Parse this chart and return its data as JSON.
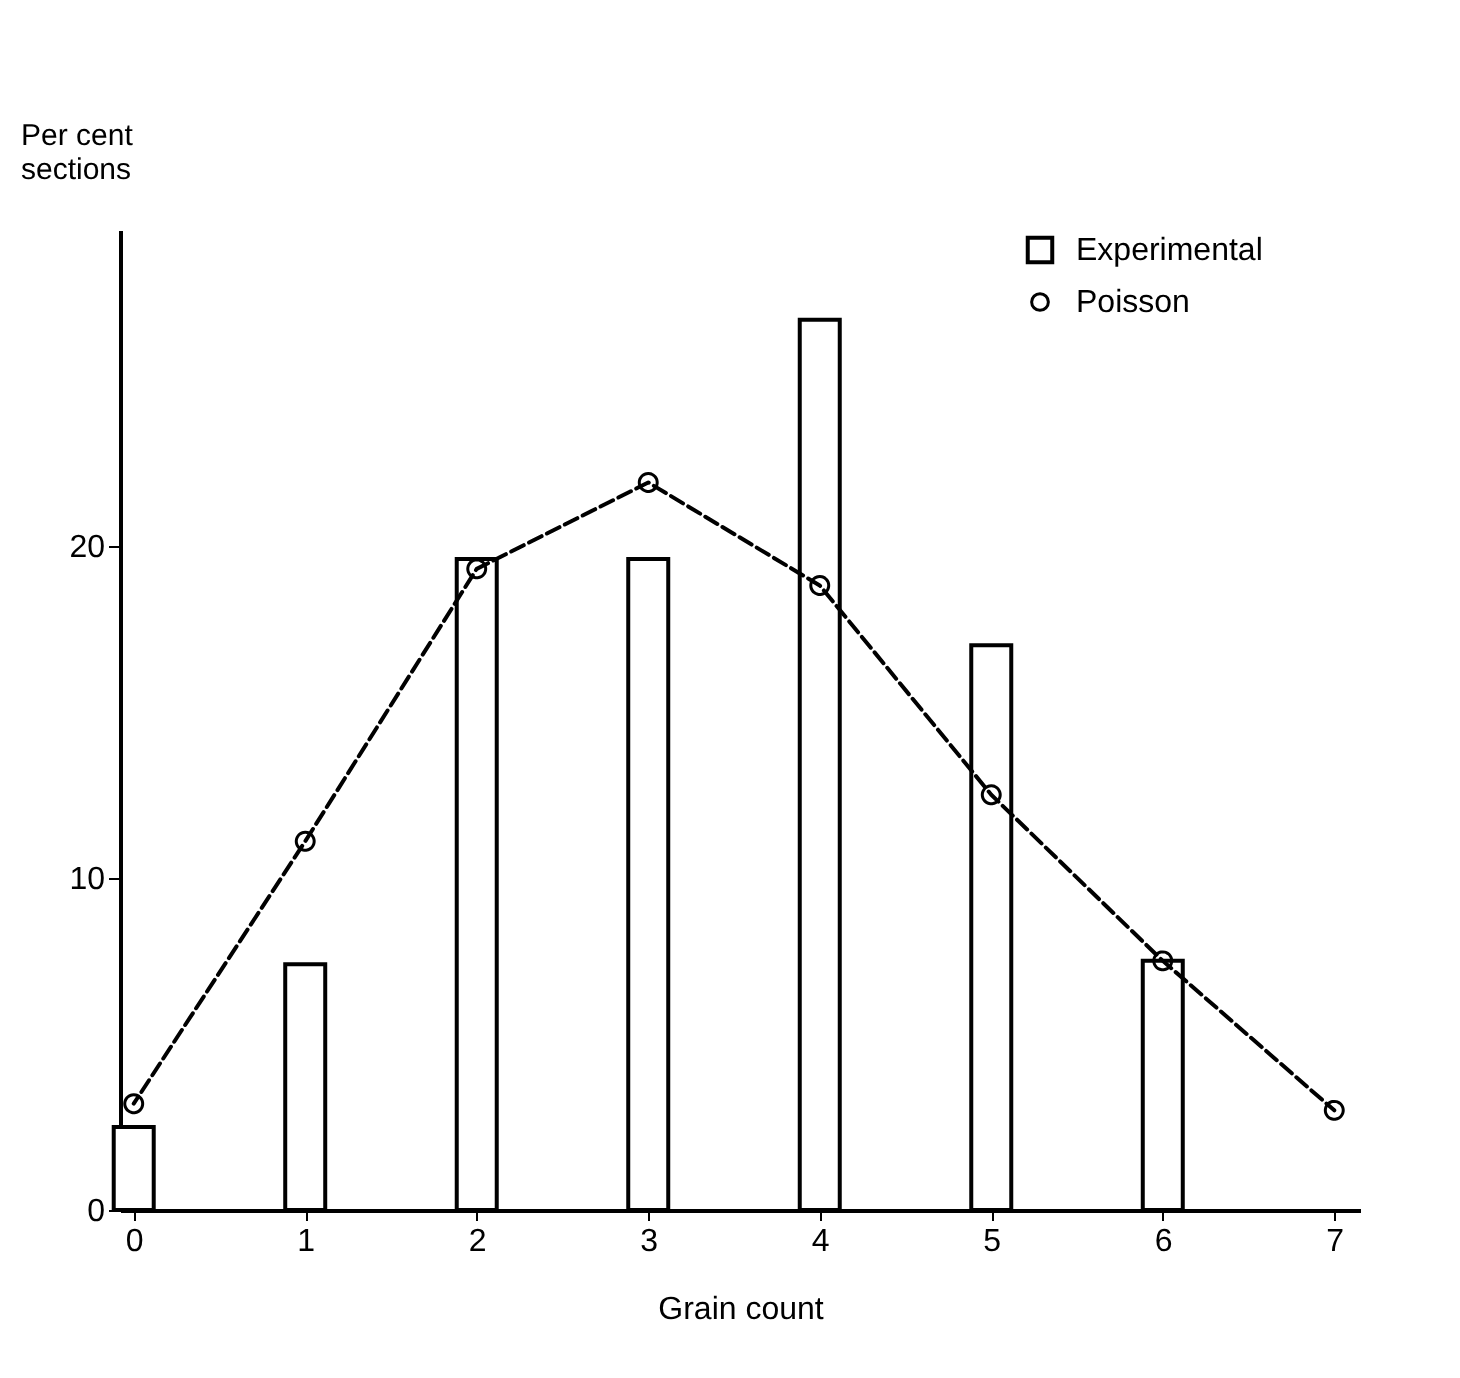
{
  "chart_data": {
    "type": "bar",
    "xlabel": "Grain count",
    "ylabel": "Per cent sections",
    "xlim": [
      -0.08,
      7.15
    ],
    "xticks": [
      0,
      1,
      2,
      3,
      4,
      5,
      6,
      7
    ],
    "ylim": [
      0,
      29.5
    ],
    "yticks": [
      0,
      10,
      20
    ],
    "grid": false,
    "legend": "top right",
    "series": [
      {
        "name": "Experimental",
        "color": "#ffffff",
        "x": [
          0,
          1,
          2,
          3,
          4,
          5,
          6
        ],
        "values": [
          2.5,
          7.4,
          19.6,
          19.6,
          26.8,
          17.0,
          7.5
        ]
      },
      {
        "name": "Poisson",
        "type": "line",
        "color": "#000000",
        "marker": "circle",
        "line_style": "dashed",
        "x": [
          0,
          1,
          2,
          3,
          4,
          5,
          6,
          7
        ],
        "values": [
          3.2,
          11.1,
          19.3,
          21.9,
          18.8,
          12.5,
          7.5,
          3.0
        ]
      }
    ]
  }
}
